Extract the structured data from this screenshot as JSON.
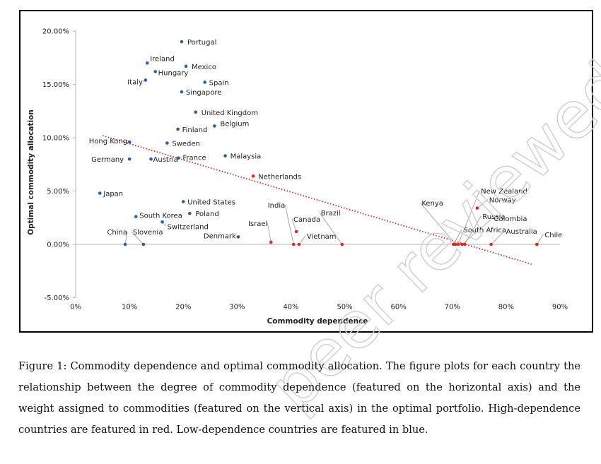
{
  "chart_data": {
    "type": "scatter",
    "title": "",
    "xlabel": "Commodity dependence",
    "ylabel": "Optimal commodity allocation",
    "xlim": [
      -0.05,
      0.9
    ],
    "ylim": [
      -0.05,
      0.2
    ],
    "x_ticks": [
      "0%",
      "10%",
      "20%",
      "30%",
      "40%",
      "50%",
      "60%",
      "70%",
      "80%",
      "90%"
    ],
    "x_tick_values": [
      0,
      0.1,
      0.2,
      0.3,
      0.4,
      0.5,
      0.6,
      0.7,
      0.8,
      0.9
    ],
    "y_ticks": [
      "20.00%",
      "15.00%",
      "10.00%",
      "5.00%",
      "0.00%",
      "-5.00%"
    ],
    "y_tick_values": [
      0.2,
      0.15,
      0.1,
      0.05,
      0.0,
      -0.05
    ],
    "grid": false,
    "legend": "none",
    "colors": {
      "low_dependence": "#2e5fa3",
      "high_dependence": "#d62c2c",
      "trendline": "#d62c2c"
    },
    "trendline": {
      "style": "dotted",
      "points": [
        [
          0.05,
          0.102
        ],
        [
          0.85,
          -0.019
        ]
      ]
    },
    "series": [
      {
        "group": "low",
        "points": [
          {
            "label": "Portugal",
            "x": 0.197,
            "y": 0.19
          },
          {
            "label": "Ireland",
            "x": 0.133,
            "y": 0.17
          },
          {
            "label": "Mexico",
            "x": 0.205,
            "y": 0.167
          },
          {
            "label": "Hungary",
            "x": 0.148,
            "y": 0.162
          },
          {
            "label": "Italy",
            "x": 0.13,
            "y": 0.154
          },
          {
            "label": "Spain",
            "x": 0.24,
            "y": 0.152
          },
          {
            "label": "Singapore",
            "x": 0.197,
            "y": 0.143
          },
          {
            "label": "United Kingdom",
            "x": 0.223,
            "y": 0.124
          },
          {
            "label": "Belgium",
            "x": 0.258,
            "y": 0.111
          },
          {
            "label": "Finland",
            "x": 0.19,
            "y": 0.108
          },
          {
            "label": "Hong Kong",
            "x": 0.1,
            "y": 0.096
          },
          {
            "label": "Sweden",
            "x": 0.17,
            "y": 0.095
          },
          {
            "label": "Malaysia",
            "x": 0.278,
            "y": 0.083
          },
          {
            "label": "France",
            "x": 0.191,
            "y": 0.081
          },
          {
            "label": "Germany",
            "x": 0.1,
            "y": 0.08
          },
          {
            "label": "Austria",
            "x": 0.14,
            "y": 0.08
          },
          {
            "label": "Japan",
            "x": 0.045,
            "y": 0.048
          },
          {
            "label": "United States",
            "x": 0.2,
            "y": 0.04
          },
          {
            "label": "South Korea",
            "x": 0.112,
            "y": 0.026
          },
          {
            "label": "Poland",
            "x": 0.212,
            "y": 0.029
          },
          {
            "label": "Switzerland",
            "x": 0.161,
            "y": 0.021
          },
          {
            "label": "China",
            "x": 0.092,
            "y": 0.0
          },
          {
            "label": "Slovenia",
            "x": 0.126,
            "y": 0.0
          },
          {
            "label": "Denmark",
            "x": 0.302,
            "y": 0.007
          }
        ]
      },
      {
        "group": "high",
        "points": [
          {
            "label": "Netherlands",
            "x": 0.33,
            "y": 0.064
          },
          {
            "label": "Israel",
            "x": 0.363,
            "y": 0.002
          },
          {
            "label": "India",
            "x": 0.405,
            "y": 0.0
          },
          {
            "label": "Canada",
            "x": 0.41,
            "y": 0.012
          },
          {
            "label": "Vietnam",
            "x": 0.415,
            "y": 0.0
          },
          {
            "label": "Brazil",
            "x": 0.495,
            "y": 0.0
          },
          {
            "label": "South Africa",
            "x": 0.702,
            "y": 0.0
          },
          {
            "label": "Kenya",
            "x": 0.706,
            "y": 0.0
          },
          {
            "label": "New Zealand",
            "x": 0.711,
            "y": 0.0
          },
          {
            "label": "Norway",
            "x": 0.746,
            "y": 0.034
          },
          {
            "label": "Russia",
            "x": 0.723,
            "y": 0.0
          },
          {
            "label": "Colombia",
            "x": 0.718,
            "y": 0.0
          },
          {
            "label": "Australia",
            "x": 0.772,
            "y": 0.0
          },
          {
            "label": "Chile",
            "x": 0.857,
            "y": 0.0
          }
        ]
      }
    ]
  },
  "watermark_text": "peer reviewed",
  "caption": "Figure 1: Commodity dependence and optimal commodity allocation. The figure plots for each country the relationship between the degree of commodity dependence (featured on the horizontal axis) and the weight assigned to commodities (featured on the vertical axis) in the optimal portfolio. High-dependence countries are featured in red. Low-dependence countries are featured in blue."
}
